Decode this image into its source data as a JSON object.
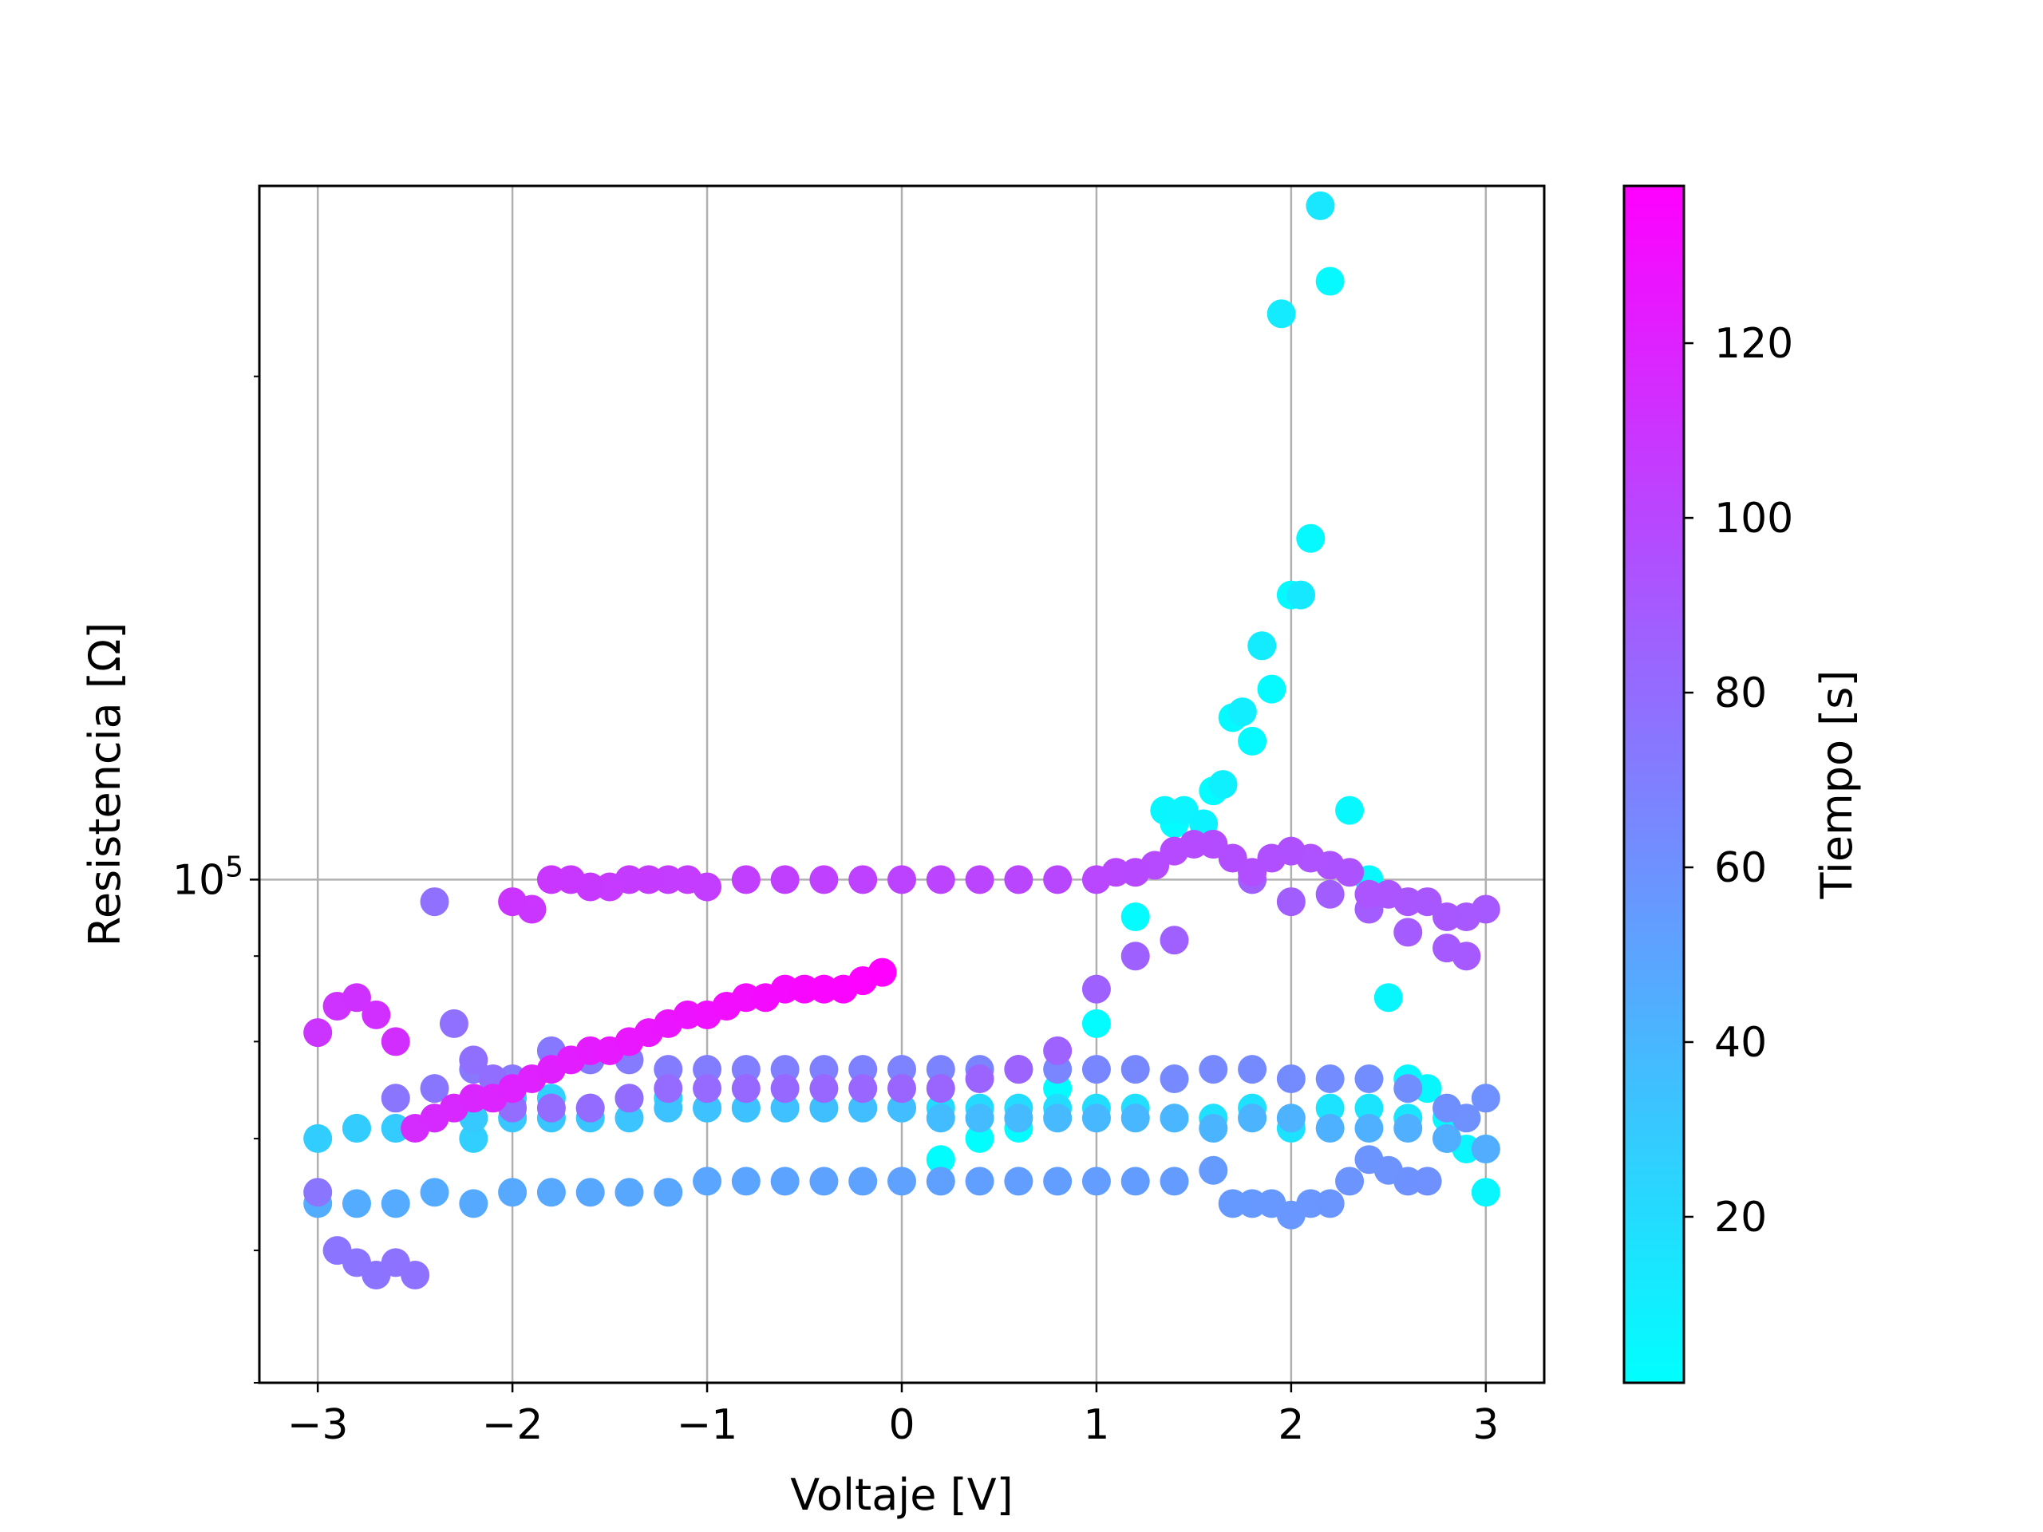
{
  "chart_data": {
    "type": "scatter",
    "xlabel": "Voltaje [V]",
    "ylabel": "Resistencia [Ω]",
    "y_scale": "log",
    "xlim": [
      -3.3,
      3.3
    ],
    "ylim": [
      50000,
      260000
    ],
    "x_ticks": [
      {
        "value": -3,
        "label": "−3"
      },
      {
        "value": -2,
        "label": "−2"
      },
      {
        "value": -1,
        "label": "−1"
      },
      {
        "value": 0,
        "label": "0"
      },
      {
        "value": 1,
        "label": "1"
      },
      {
        "value": 2,
        "label": "2"
      },
      {
        "value": 3,
        "label": "3"
      }
    ],
    "y_ticks": [
      {
        "value": 100000,
        "base": "10",
        "exponent": "5"
      }
    ],
    "y_minor_ticks": [
      50000,
      60000,
      70000,
      80000,
      90000,
      200000
    ],
    "grid": true,
    "colorbar": {
      "label": "Tiempo [s]",
      "colormap": "cool",
      "range": [
        1,
        138
      ],
      "ticks": [
        "20",
        "40",
        "60",
        "80",
        "100",
        "120"
      ],
      "tick_values": [
        20,
        40,
        60,
        80,
        100,
        120
      ],
      "color_low": "#00ffff",
      "color_high": "#ff00ff"
    },
    "series": [
      {
        "t": [
          2,
          6
        ],
        "x": [
          0.2,
          0.4,
          0.6,
          0.8,
          1.0,
          1.2,
          1.4,
          1.6,
          1.7,
          1.8,
          1.9,
          2.0,
          2.1,
          2.2,
          2.3,
          2.4,
          2.5,
          2.6,
          2.7,
          2.8,
          2.9,
          3.0
        ],
        "y": [
          68000,
          70000,
          71000,
          75000,
          82000,
          95000,
          108000,
          113000,
          125000,
          121000,
          130000,
          148000,
          160000,
          228000,
          110000,
          100000,
          85000,
          76000,
          75000,
          72000,
          69000,
          65000
        ]
      },
      {
        "t": [
          6,
          14
        ],
        "x": [
          1.35,
          1.45,
          1.55,
          1.65,
          1.75,
          1.85,
          1.95,
          2.05,
          2.15
        ],
        "y": [
          110000,
          110000,
          108000,
          114000,
          126000,
          138000,
          218000,
          148000,
          253000
        ]
      },
      {
        "t": [
          14,
          28
        ],
        "x": [
          3.0,
          2.8,
          2.6,
          2.4,
          2.2,
          2.0,
          1.8,
          1.6,
          1.4,
          1.2,
          1.0,
          0.8,
          0.6,
          0.4,
          0.2,
          0.0,
          -0.2,
          -0.4,
          -0.6,
          -0.8,
          -1.0,
          -1.2,
          -1.4,
          -1.6,
          -1.8,
          -2.0,
          -2.2,
          -2.4,
          -2.6,
          -2.8
        ],
        "y": [
          69000,
          70000,
          72000,
          73000,
          73000,
          71000,
          73000,
          72000,
          72000,
          73000,
          73000,
          73000,
          73000,
          73000,
          73000,
          73000,
          73000,
          73000,
          73000,
          73000,
          73000,
          74000,
          74000,
          73000,
          74000,
          74000,
          70000,
          72000,
          71000,
          71000
        ]
      },
      {
        "t": [
          28,
          45
        ],
        "x": [
          -3.0,
          -2.8,
          -2.6,
          -2.4,
          -2.2,
          -2.0,
          -1.8,
          -1.6,
          -1.4,
          -1.2,
          -1.0,
          -0.8,
          -0.6,
          -0.4,
          -0.2,
          0.0,
          0.2,
          0.4,
          0.6,
          0.8,
          1.0,
          1.2,
          1.4,
          1.6,
          1.8,
          2.0,
          2.2,
          2.4,
          2.6,
          2.8,
          3.0
        ],
        "y": [
          70000,
          71000,
          71000,
          72000,
          72000,
          72000,
          72000,
          72000,
          72000,
          73000,
          73000,
          73000,
          73000,
          73000,
          73000,
          73000,
          72000,
          72000,
          72000,
          72000,
          72000,
          72000,
          72000,
          71000,
          72000,
          72000,
          71000,
          71000,
          71000,
          70000,
          69000
        ]
      },
      {
        "t": [
          45,
          60
        ],
        "x": [
          -3.0,
          -2.8,
          -2.6,
          -2.4,
          -2.2,
          -2.0,
          -1.8,
          -1.6,
          -1.4,
          -1.2,
          -1.0,
          -0.8,
          -0.6,
          -0.4,
          -0.2,
          0.0,
          0.2,
          0.4,
          0.6,
          0.8,
          1.0,
          1.2,
          1.4,
          1.6,
          1.7,
          1.8,
          1.9,
          2.0,
          2.1,
          2.2,
          2.3,
          2.4,
          2.5,
          2.6,
          2.7
        ],
        "y": [
          64000,
          64000,
          64000,
          65000,
          64000,
          65000,
          65000,
          65000,
          65000,
          65000,
          66000,
          66000,
          66000,
          66000,
          66000,
          66000,
          66000,
          66000,
          66000,
          66000,
          66000,
          66000,
          66000,
          67000,
          64000,
          64000,
          64000,
          63000,
          64000,
          64000,
          66000,
          68000,
          67000,
          66000,
          66000
        ]
      },
      {
        "t": [
          60,
          75
        ],
        "x": [
          3.0,
          2.9,
          2.8,
          2.6,
          2.4,
          2.2,
          2.0,
          1.8,
          1.6,
          1.4,
          1.2,
          1.0,
          0.8,
          0.6,
          0.4,
          0.2,
          0.0,
          -0.2,
          -0.4,
          -0.6,
          -0.8,
          -1.0,
          -1.2,
          -1.4,
          -1.6,
          -1.8,
          -2.0,
          -2.2,
          -2.4,
          -2.6
        ],
        "y": [
          74000,
          72000,
          73000,
          75000,
          76000,
          76000,
          76000,
          77000,
          77000,
          76000,
          77000,
          77000,
          77000,
          77000,
          77000,
          77000,
          77000,
          77000,
          77000,
          77000,
          77000,
          77000,
          77000,
          78000,
          78000,
          79000,
          76000,
          77000,
          75000,
          74000
        ]
      },
      {
        "t": [
          75,
          90
        ],
        "x": [
          -3.0,
          -2.9,
          -2.8,
          -2.7,
          -2.6,
          -2.5,
          -2.4,
          -2.3,
          -2.2,
          -2.1,
          -2.0,
          -1.8,
          -1.6,
          -1.4,
          -1.2,
          -1.0,
          -0.8,
          -0.6,
          -0.4,
          -0.2,
          0.0,
          0.2,
          0.4,
          0.6,
          0.8,
          1.0,
          1.2,
          1.4,
          1.6,
          1.8,
          2.0,
          2.2,
          2.4,
          2.6,
          2.8,
          2.9
        ],
        "y": [
          65000,
          60000,
          59000,
          58000,
          59000,
          58000,
          97000,
          82000,
          78000,
          76000,
          73000,
          73000,
          73000,
          74000,
          75000,
          75000,
          75000,
          75000,
          75000,
          75000,
          75000,
          75000,
          76000,
          77000,
          79000,
          86000,
          90000,
          92000,
          105000,
          100000,
          97000,
          98000,
          96000,
          93000,
          91000,
          90000
        ]
      },
      {
        "t": [
          90,
          110
        ],
        "x": [
          3.0,
          2.9,
          2.8,
          2.7,
          2.6,
          2.5,
          2.4,
          2.3,
          2.2,
          2.1,
          2.0,
          1.9,
          1.8,
          1.7,
          1.6,
          1.5,
          1.4,
          1.3,
          1.2,
          1.1,
          1.0,
          0.8,
          0.6,
          0.4,
          0.2,
          0.0,
          -0.2,
          -0.4,
          -0.6,
          -0.8,
          -1.0,
          -1.1,
          -1.2,
          -1.3,
          -1.4,
          -1.5,
          -1.6,
          -1.7,
          -1.8,
          -1.9,
          -2.0
        ],
        "y": [
          96000,
          95000,
          95000,
          97000,
          97000,
          98000,
          98000,
          101000,
          102000,
          103000,
          104000,
          103000,
          101000,
          103000,
          105000,
          105000,
          104000,
          102000,
          101000,
          101000,
          100000,
          100000,
          100000,
          100000,
          100000,
          100000,
          100000,
          100000,
          100000,
          100000,
          99000,
          100000,
          100000,
          100000,
          100000,
          99000,
          99000,
          100000,
          100000,
          96000,
          97000
        ]
      },
      {
        "t": [
          110,
          138
        ],
        "x": [
          -3.0,
          -2.9,
          -2.8,
          -2.7,
          -2.6,
          -2.5,
          -2.4,
          -2.3,
          -2.2,
          -2.1,
          -2.0,
          -1.9,
          -1.8,
          -1.7,
          -1.6,
          -1.5,
          -1.4,
          -1.3,
          -1.2,
          -1.1,
          -1.0,
          -0.9,
          -0.8,
          -0.7,
          -0.6,
          -0.5,
          -0.4,
          -0.3,
          -0.2,
          -0.1
        ],
        "y": [
          81000,
          84000,
          85000,
          83000,
          80000,
          71000,
          72000,
          73000,
          74000,
          74000,
          75000,
          76000,
          77000,
          78000,
          79000,
          79000,
          80000,
          81000,
          82000,
          83000,
          83000,
          84000,
          85000,
          85000,
          86000,
          86000,
          86000,
          86000,
          87000,
          88000
        ]
      }
    ]
  }
}
